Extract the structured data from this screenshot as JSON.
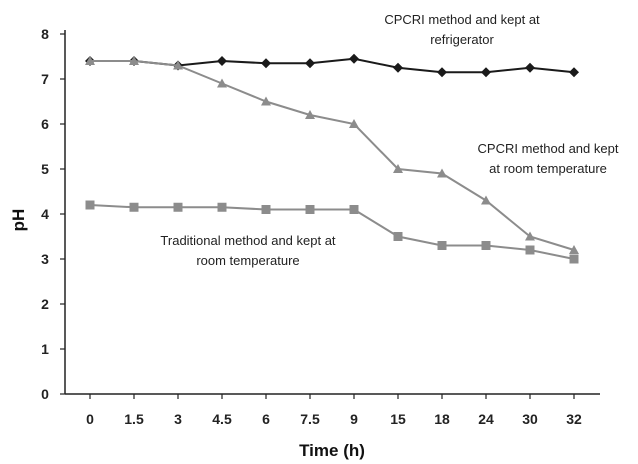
{
  "chart_data": {
    "type": "line",
    "title": "",
    "xlabel": "Time (h)",
    "ylabel": "pH",
    "categories": [
      "0",
      "1.5",
      "3",
      "4.5",
      "6",
      "7.5",
      "9",
      "15",
      "18",
      "24",
      "30",
      "32"
    ],
    "ylim": [
      0,
      8
    ],
    "yticks": [
      "0",
      "1",
      "2",
      "3",
      "4",
      "5",
      "6",
      "7",
      "8"
    ],
    "grid": false,
    "series": [
      {
        "name": "CPCRI method and kept at refrigerator",
        "marker": "diamond",
        "color": "#1a1a1a",
        "values": [
          7.4,
          7.4,
          7.3,
          7.4,
          7.35,
          7.35,
          7.45,
          7.25,
          7.15,
          7.15,
          7.25,
          7.15
        ]
      },
      {
        "name": "CPCRI method and kept at room temperature",
        "marker": "triangle",
        "color": "#8c8c8c",
        "values": [
          7.4,
          7.4,
          7.3,
          6.9,
          6.5,
          6.2,
          6.0,
          5.0,
          4.9,
          4.3,
          3.5,
          3.2
        ]
      },
      {
        "name": "Traditional method and kept at room temperature",
        "marker": "square",
        "color": "#8c8c8c",
        "values": [
          4.2,
          4.15,
          4.15,
          4.15,
          4.1,
          4.1,
          4.1,
          3.5,
          3.3,
          3.3,
          3.2,
          3.0
        ]
      }
    ],
    "annotations": [
      {
        "lines": [
          "CPCRI method and kept at",
          "refrigerator"
        ]
      },
      {
        "lines": [
          "CPCRI method and kept",
          "at room temperature"
        ]
      },
      {
        "lines": [
          "Traditional method and kept at",
          "room temperature"
        ]
      }
    ],
    "legend": "none"
  }
}
